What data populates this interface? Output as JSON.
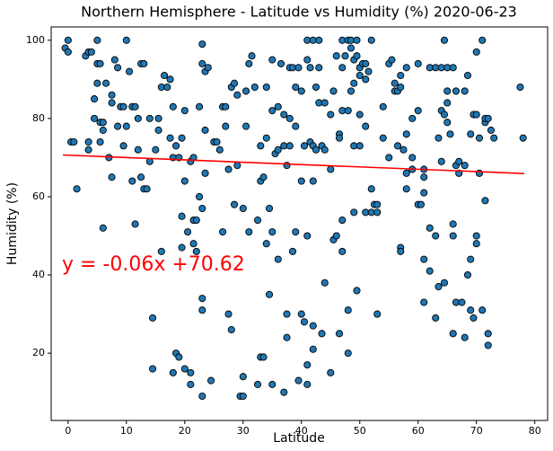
{
  "chart_data": {
    "type": "scatter",
    "title": "Northern Hemisphere - Latitude vs Humidity (%) 2020-06-23",
    "x_label": "Latitude",
    "y_label": "Humidity (%)",
    "annotation": "y = -0.06x +70.62",
    "color": "#1f77b4",
    "edge_color": "#000000",
    "line_color": "#ff0000",
    "annotation_color": "#ff0000",
    "xlim": [
      -2.9,
      82.2
    ],
    "ylim": [
      2.8,
      103.4
    ],
    "xticks": [
      0,
      10,
      20,
      30,
      40,
      50,
      60,
      70,
      80
    ],
    "yticks": [
      20,
      40,
      60,
      80,
      100
    ],
    "grid": false,
    "x": [
      0,
      -0.5,
      0,
      0.5,
      1,
      1.5,
      3,
      3.5,
      4,
      3.5,
      3.5,
      4.5,
      4.5,
      5,
      5,
      5,
      5.5,
      5.5,
      6,
      6,
      6,
      6.5,
      5.5,
      7,
      7.5,
      7.5,
      7.5,
      8,
      8.5,
      8.5,
      9,
      9.5,
      9.5,
      10,
      10,
      10.5,
      11,
      11,
      11.5,
      11.5,
      12,
      12,
      12.5,
      12.5,
      13,
      13,
      13.5,
      14,
      14,
      14.5,
      14.5,
      15,
      15.5,
      15.5,
      16,
      16,
      16.5,
      17,
      17.5,
      17.5,
      18,
      18,
      18.5,
      18,
      18.5,
      19,
      19,
      19.5,
      19.5,
      19.5,
      20,
      20,
      20,
      20.5,
      21,
      21,
      21,
      21.5,
      21.5,
      21.5,
      22,
      22,
      22.5,
      22.5,
      23,
      23,
      23,
      23,
      23,
      23,
      23.5,
      23.5,
      23.5,
      24,
      24.5,
      25,
      25.5,
      26,
      26.5,
      26.5,
      27,
      27,
      27.5,
      27.5,
      28,
      28,
      28.5,
      28.5,
      29,
      29,
      29.5,
      30,
      30,
      30,
      30.5,
      30.5,
      31,
      31,
      31.5,
      32,
      32.5,
      32.5,
      33,
      33,
      33,
      33.5,
      33.5,
      34,
      34,
      34,
      34.5,
      34.5,
      35,
      35,
      35,
      35,
      35.5,
      36,
      36,
      36,
      36.5,
      37,
      37,
      37,
      37.5,
      37.5,
      37.5,
      38,
      38,
      38,
      38.5,
      38.5,
      39,
      39,
      39,
      39.5,
      39.5,
      40,
      40,
      40,
      40.5,
      40.5,
      41,
      41,
      41,
      41,
      41,
      41.5,
      41.5,
      42,
      42,
      42,
      42,
      42,
      42.5,
      42.5,
      43,
      43,
      43,
      43.5,
      43.5,
      44,
      44,
      44,
      45,
      45,
      45,
      45.5,
      45.5,
      46,
      46,
      46.5,
      46.5,
      46.5,
      47,
      47,
      47,
      47,
      47,
      47.5,
      48,
      48,
      48,
      48,
      48.5,
      48.5,
      48.5,
      49,
      49,
      49,
      49,
      49.5,
      49.5,
      49.5,
      50,
      50,
      50,
      50,
      50.5,
      51,
      51,
      51,
      51,
      51.5,
      52,
      52,
      52,
      52.5,
      53,
      53,
      53,
      54,
      54,
      55,
      55,
      55.5,
      56,
      56,
      56.5,
      56.5,
      57,
      57,
      57,
      57,
      57.5,
      58,
      58,
      58,
      58,
      59,
      59,
      59,
      60,
      60,
      60,
      60.5,
      61,
      61,
      61,
      61,
      61,
      62,
      62,
      62,
      63,
      63,
      63,
      63.5,
      63.5,
      64,
      64,
      64,
      64.5,
      64.5,
      64.5,
      65,
      65,
      65,
      65,
      65.5,
      66,
      66,
      66,
      66,
      66.5,
      66.5,
      66.5,
      67,
      67,
      67.5,
      68,
      68,
      68,
      68.5,
      68.5,
      69,
      69,
      69,
      69.5,
      69.5,
      70,
      70,
      70,
      70,
      70.5,
      70.5,
      71,
      71,
      71.5,
      71.5,
      71.5,
      72,
      72,
      72,
      72.5,
      73,
      77.5,
      78
    ],
    "values": [
      100,
      98,
      97,
      74,
      74,
      62,
      96,
      97,
      97,
      74,
      72,
      85,
      80,
      100,
      94,
      89,
      94,
      79,
      79,
      77,
      52,
      89,
      74,
      70,
      86,
      84,
      65,
      95,
      93,
      78,
      83,
      83,
      73,
      100,
      78,
      92,
      83,
      64,
      83,
      53,
      80,
      72,
      94,
      65,
      62,
      94,
      62,
      69,
      80,
      29,
      16,
      72,
      80,
      77,
      88,
      46,
      91,
      88,
      75,
      90,
      70,
      83,
      73,
      15,
      20,
      19,
      70,
      47,
      55,
      75,
      82,
      64,
      16,
      51,
      69,
      15,
      12,
      48,
      54,
      70,
      54,
      46,
      83,
      60,
      9,
      31,
      34,
      57,
      94,
      99,
      92,
      77,
      66,
      93,
      13,
      74,
      74,
      72,
      83,
      51,
      83,
      78,
      30,
      67,
      26,
      88,
      89,
      58,
      68,
      86,
      9,
      9,
      14,
      57,
      78,
      87,
      94,
      51,
      96,
      88,
      54,
      12,
      64,
      19,
      73,
      65,
      19,
      48,
      88,
      75,
      35,
      57,
      95,
      51,
      82,
      12,
      71,
      44,
      83,
      72,
      94,
      81,
      73,
      10,
      68,
      24,
      30,
      73,
      93,
      80,
      93,
      46,
      88,
      78,
      51,
      93,
      13,
      64,
      30,
      87,
      28,
      73,
      100,
      17,
      50,
      95,
      12,
      93,
      74,
      100,
      27,
      73,
      64,
      21,
      88,
      72,
      100,
      84,
      93,
      73,
      25,
      38,
      84,
      72,
      67,
      81,
      15,
      49,
      87,
      50,
      96,
      76,
      75,
      25,
      100,
      82,
      54,
      93,
      46,
      96,
      100,
      82,
      31,
      20,
      100,
      87,
      98,
      89,
      95,
      73,
      56,
      96,
      100,
      36,
      91,
      93,
      81,
      73,
      94,
      78,
      56,
      90,
      94,
      92,
      100,
      62,
      56,
      58,
      58,
      30,
      56,
      83,
      75,
      70,
      94,
      95,
      89,
      87,
      73,
      87,
      47,
      46,
      91,
      88,
      72,
      66,
      76,
      62,
      93,
      67,
      80,
      70,
      58,
      82,
      94,
      58,
      33,
      44,
      67,
      65,
      61,
      52,
      93,
      41,
      93,
      50,
      29,
      37,
      75,
      82,
      93,
      69,
      100,
      81,
      38,
      87,
      93,
      84,
      79,
      76,
      53,
      50,
      93,
      25,
      87,
      68,
      33,
      69,
      66,
      33,
      68,
      24,
      87,
      91,
      40,
      44,
      31,
      76,
      81,
      29,
      81,
      50,
      48,
      97,
      75,
      66,
      100,
      31,
      79,
      80,
      59,
      80,
      25,
      22,
      77,
      75,
      88,
      75
    ],
    "fit_line": {
      "x": [
        -0.9,
        78.2
      ],
      "values": [
        70.67,
        65.93
      ]
    }
  }
}
